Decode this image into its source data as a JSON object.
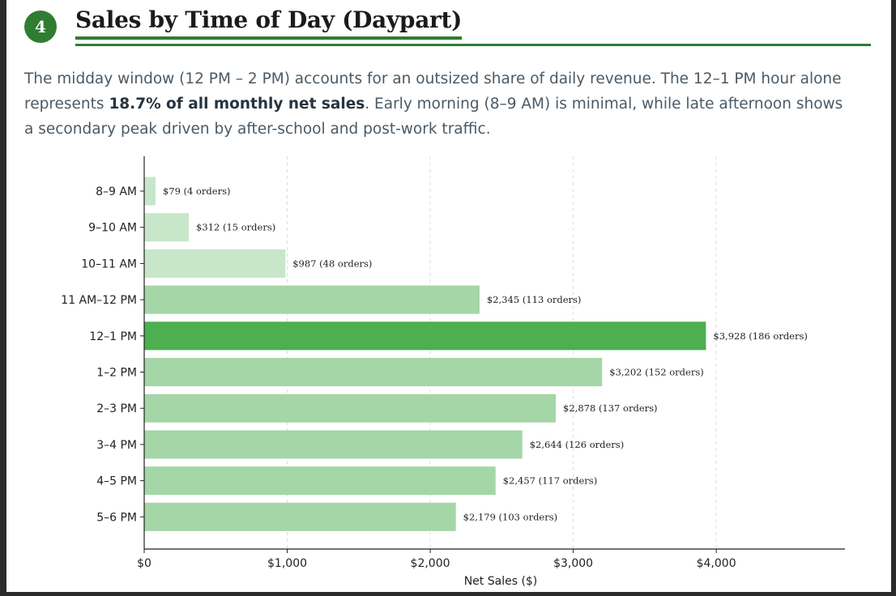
{
  "section": {
    "number": "4",
    "title": "Sales by Time of Day (Daypart)"
  },
  "intro": {
    "part1": "The midday window (12 PM – 2 PM) accounts for an outsized share of daily revenue. The 12–1 PM hour alone represents ",
    "bold": "18.7% of all monthly net sales",
    "part2": ". Early morning (8–9 AM) is minimal, while late afternoon shows a secondary peak driven by after-school and post-work traffic."
  },
  "colors": {
    "accent": "#2e7d32",
    "bar_light": "#c8e6c9",
    "bar_medium": "#a5d6a7",
    "bar_peak": "#4caf50"
  },
  "chart_data": {
    "type": "bar",
    "orientation": "horizontal",
    "categories": [
      "8–9 AM",
      "9–10 AM",
      "10–11 AM",
      "11 AM–12 PM",
      "12–1 PM",
      "1–2 PM",
      "2–3 PM",
      "3–4 PM",
      "4–5 PM",
      "5–6 PM"
    ],
    "values": [
      79,
      312,
      987,
      2345,
      3928,
      3202,
      2878,
      2644,
      2457,
      2179
    ],
    "orders": [
      4,
      15,
      48,
      113,
      186,
      152,
      137,
      126,
      117,
      103
    ],
    "data_labels": [
      "$79  (4 orders)",
      "$312  (15 orders)",
      "$987  (48 orders)",
      "$2,345  (113 orders)",
      "$3,928  (186 orders)",
      "$3,202  (152 orders)",
      "$2,878  (137 orders)",
      "$2,644  (126 orders)",
      "$2,457  (117 orders)",
      "$2,179  (103 orders)"
    ],
    "bar_colors": [
      "#c8e6c9",
      "#c8e6c9",
      "#c8e6c9",
      "#a5d6a7",
      "#4caf50",
      "#a5d6a7",
      "#a5d6a7",
      "#a5d6a7",
      "#a5d6a7",
      "#a5d6a7"
    ],
    "highlight": "12–1 PM",
    "xlabel": "Net Sales ($)",
    "ylabel": "",
    "xlim": [
      0,
      4900
    ],
    "xticks": [
      0,
      1000,
      2000,
      3000,
      4000
    ],
    "xtick_labels": [
      "$0",
      "$1,000",
      "$2,000",
      "$3,000",
      "$4,000"
    ],
    "grid": "x, dashed",
    "legend": "none"
  }
}
